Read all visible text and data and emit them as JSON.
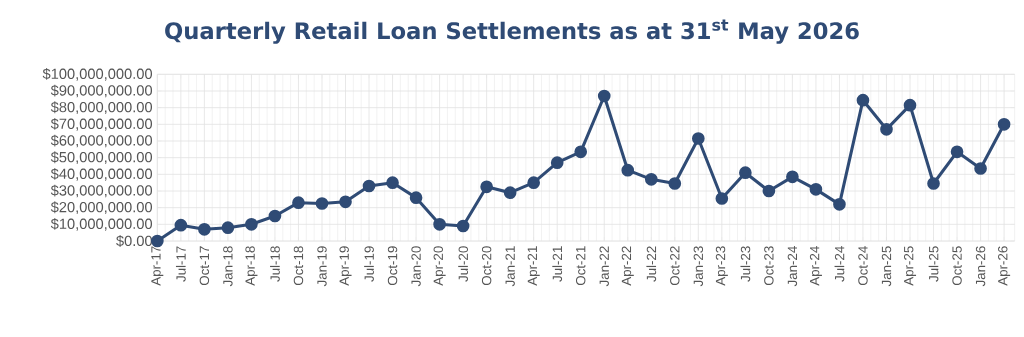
{
  "chart_data": {
    "type": "line",
    "title": "Quarterly Retail Loan Settlements as at 31$^{st}$ May 2026",
    "categories": [
      "Apr-17",
      "Jul-17",
      "Oct-17",
      "Jan-18",
      "Apr-18",
      "Jul-18",
      "Oct-18",
      "Jan-19",
      "Apr-19",
      "Jul-19",
      "Oct-19",
      "Jan-20",
      "Apr-20",
      "Jul-20",
      "Oct-20",
      "Jan-21",
      "Apr-21",
      "Jul-21",
      "Oct-21",
      "Jan-22",
      "Apr-22",
      "Jul-22",
      "Oct-22",
      "Jan-23",
      "Apr-23",
      "Jul-23",
      "Oct-23",
      "Jan-24",
      "Apr-24",
      "Jul-24",
      "Oct-24",
      "Jan-25",
      "Apr-25",
      "Jul-25",
      "Oct-25",
      "Jan-26",
      "Apr-26"
    ],
    "series": [
      {
        "color": "#2f4b75",
        "values": [
          0,
          9500000,
          7000000,
          8000000,
          10000000,
          15000000,
          23000000,
          22500000,
          23500000,
          33000000,
          35000000,
          26000000,
          10000000,
          9000000,
          32500000,
          29000000,
          35000000,
          47000000,
          53500000,
          87000000,
          42500000,
          37000000,
          34500000,
          61500000,
          25500000,
          41000000,
          30000000,
          38500000,
          31000000,
          22000000,
          84500000,
          67000000,
          81500000,
          34500000,
          53500000,
          43500000,
          70000000
        ]
      }
    ],
    "ylim": [
      0,
      100000000
    ],
    "yticks": [
      {
        "value": 0,
        "label": "$0.00"
      },
      {
        "value": 10000000,
        "label": "$10,000,000.00"
      },
      {
        "value": 20000000,
        "label": "$20,000,000.00"
      },
      {
        "value": 30000000,
        "label": "$30,000,000.00"
      },
      {
        "value": 40000000,
        "label": "$40,000,000.00"
      },
      {
        "value": 50000000,
        "label": "$50,000,000.00"
      },
      {
        "value": 60000000,
        "label": "$60,000,000.00"
      },
      {
        "value": 70000000,
        "label": "$70,000,000.00"
      },
      {
        "value": 80000000,
        "label": "$80,000,000.00"
      },
      {
        "value": 90000000,
        "label": "$90,000,000.00"
      },
      {
        "value": 100000000,
        "label": "$100,000,000.00"
      }
    ],
    "grid": true,
    "marker": "circle",
    "line_style": "solid"
  }
}
